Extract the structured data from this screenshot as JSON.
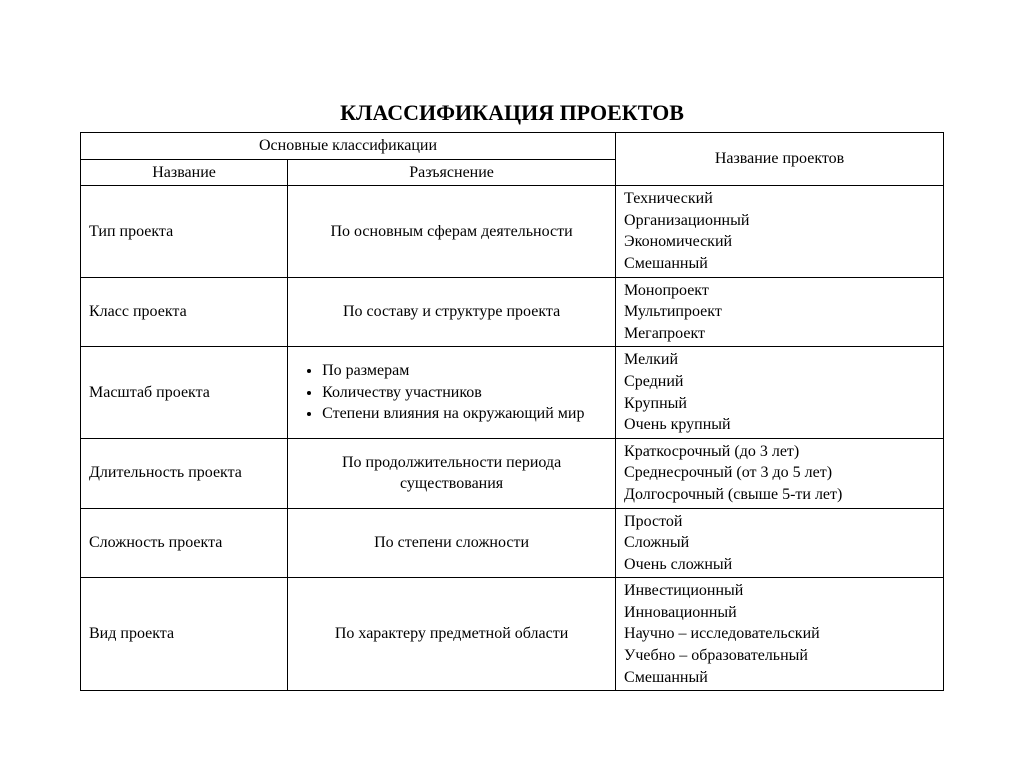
{
  "title": "КЛАССИФИКАЦИЯ ПРОЕКТОВ",
  "headers": {
    "main_class": "Основные классификации",
    "name": "Название",
    "explanation": "Разъяснение",
    "projects": "Название проектов"
  },
  "col_widths": {
    "name": "24%",
    "explanation": "38%",
    "projects": "38%"
  },
  "rows": [
    {
      "name": "Тип проекта",
      "explanation_type": "text",
      "explanation": "По основным сферам деятельности",
      "projects": [
        "Технический",
        "Организационный",
        "Экономический",
        "Смешанный"
      ]
    },
    {
      "name": "Класс проекта",
      "explanation_type": "text",
      "explanation": "По составу и структуре проекта",
      "projects": [
        "Монопроект",
        "Мультипроект",
        "Мегапроект"
      ]
    },
    {
      "name": "Масштаб проекта",
      "explanation_type": "bullets",
      "bullets": [
        "По размерам",
        "Количеству участников",
        "Степени влияния на окружающий мир"
      ],
      "projects": [
        "Мелкий",
        "Средний",
        "Крупный",
        "Очень крупный"
      ]
    },
    {
      "name": "Длительность проекта",
      "explanation_type": "text",
      "explanation": "По продолжительности периода существования",
      "projects": [
        "Краткосрочный (до 3 лет)",
        "Среднесрочный (от 3 до 5 лет)",
        "Долгосрочный (свыше 5-ти лет)"
      ]
    },
    {
      "name": "Сложность проекта",
      "explanation_type": "text",
      "explanation": "По степени сложности",
      "projects": [
        "Простой",
        "Сложный",
        "Очень сложный"
      ]
    },
    {
      "name": "Вид проекта",
      "explanation_type": "text",
      "explanation": "По характеру предметной области",
      "projects": [
        "Инвестиционный",
        "Инновационный",
        "Научно – исследовательский",
        "Учебно – образовательный",
        "Смешанный"
      ]
    }
  ]
}
